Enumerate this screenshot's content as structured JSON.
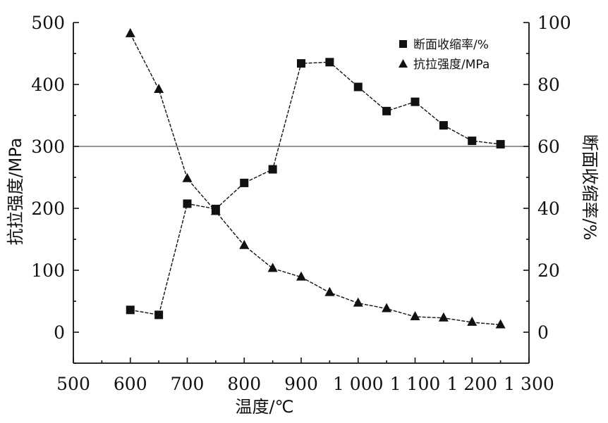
{
  "chart_data": {
    "type": "line",
    "x": [
      600,
      650,
      700,
      750,
      800,
      850,
      900,
      950,
      1000,
      1050,
      1100,
      1150,
      1200,
      1250
    ],
    "x_tick_labels": [
      "500",
      "600",
      "700",
      "800",
      "900",
      "1 000",
      "1 100",
      "1 200",
      "1 300"
    ],
    "x_tick_values": [
      500,
      600,
      700,
      800,
      900,
      1000,
      1100,
      1200,
      1300
    ],
    "xlim": [
      500,
      1300
    ],
    "xlabel": "温度/℃",
    "ylabel_left": "抗拉强度/MPa",
    "ylabel_right": "断面收缩率/%",
    "ylim_left": [
      -50,
      500
    ],
    "ylim_right": [
      -10,
      100
    ],
    "y_left_ticks": [
      "0",
      "100",
      "200",
      "300",
      "400",
      "500"
    ],
    "y_left_tick_values": [
      0,
      100,
      200,
      300,
      400,
      500
    ],
    "y_right_ticks": [
      "0",
      "20",
      "40",
      "60",
      "80",
      "100"
    ],
    "y_right_tick_values": [
      0,
      20,
      40,
      60,
      80,
      100
    ],
    "reference_line": {
      "axis": "right",
      "value": 60
    },
    "series": [
      {
        "name": "断面收缩率/%",
        "axis": "right",
        "marker": "square",
        "values": [
          7.2,
          5.6,
          41.5,
          39.8,
          48.2,
          52.6,
          86.8,
          87.2,
          79.2,
          71.4,
          74.4,
          66.8,
          61.8,
          60.7
        ]
      },
      {
        "name": "抗拉强度/MPa",
        "axis": "left",
        "marker": "triangle",
        "values": [
          482,
          392,
          248,
          195,
          140,
          103,
          89,
          64,
          47,
          38,
          25,
          23,
          16,
          12
        ]
      }
    ],
    "legend_position": "top-right",
    "grid": false
  }
}
